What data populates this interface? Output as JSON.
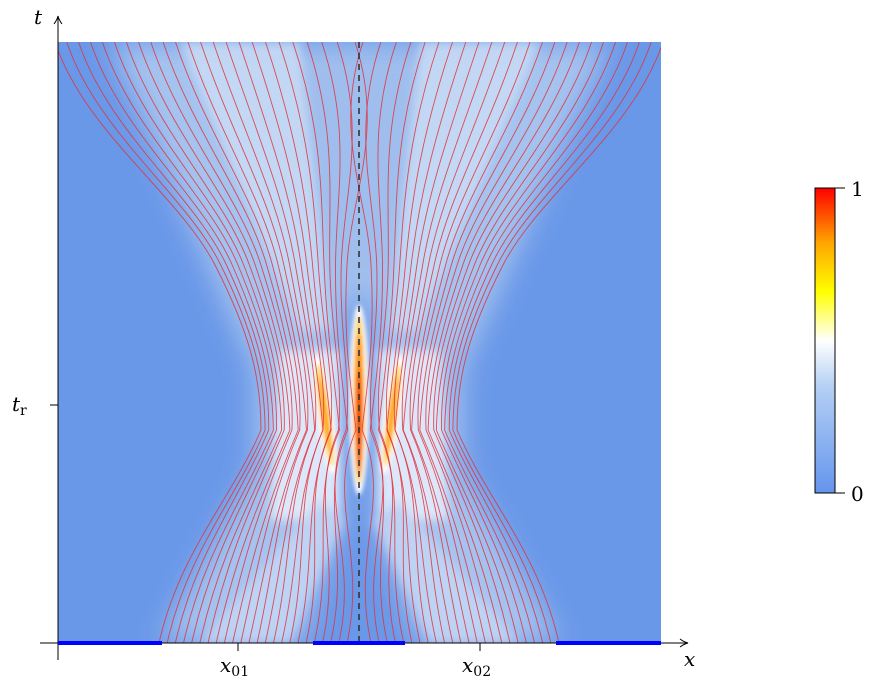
{
  "axes": {
    "x_label": "x",
    "t_label": "t",
    "t_tick_label": "t",
    "t_tick_sub": "r",
    "x_tick_1": "x",
    "x_tick_1_sub": "01",
    "x_tick_2": "x",
    "x_tick_2_sub": "02"
  },
  "colorbar": {
    "max_label": "1",
    "min_label": "0",
    "stops": [
      "#6495ed",
      "#aac8f0",
      "#ffffff",
      "#ffff00",
      "#ffa500",
      "#ff0000"
    ]
  },
  "colors": {
    "trajectory": "#e0303a",
    "divider": "#333333",
    "segment": "#0000ff",
    "background_field": "#6a98e8"
  },
  "figure": {
    "n_trajectories_per_side": 24
  }
}
